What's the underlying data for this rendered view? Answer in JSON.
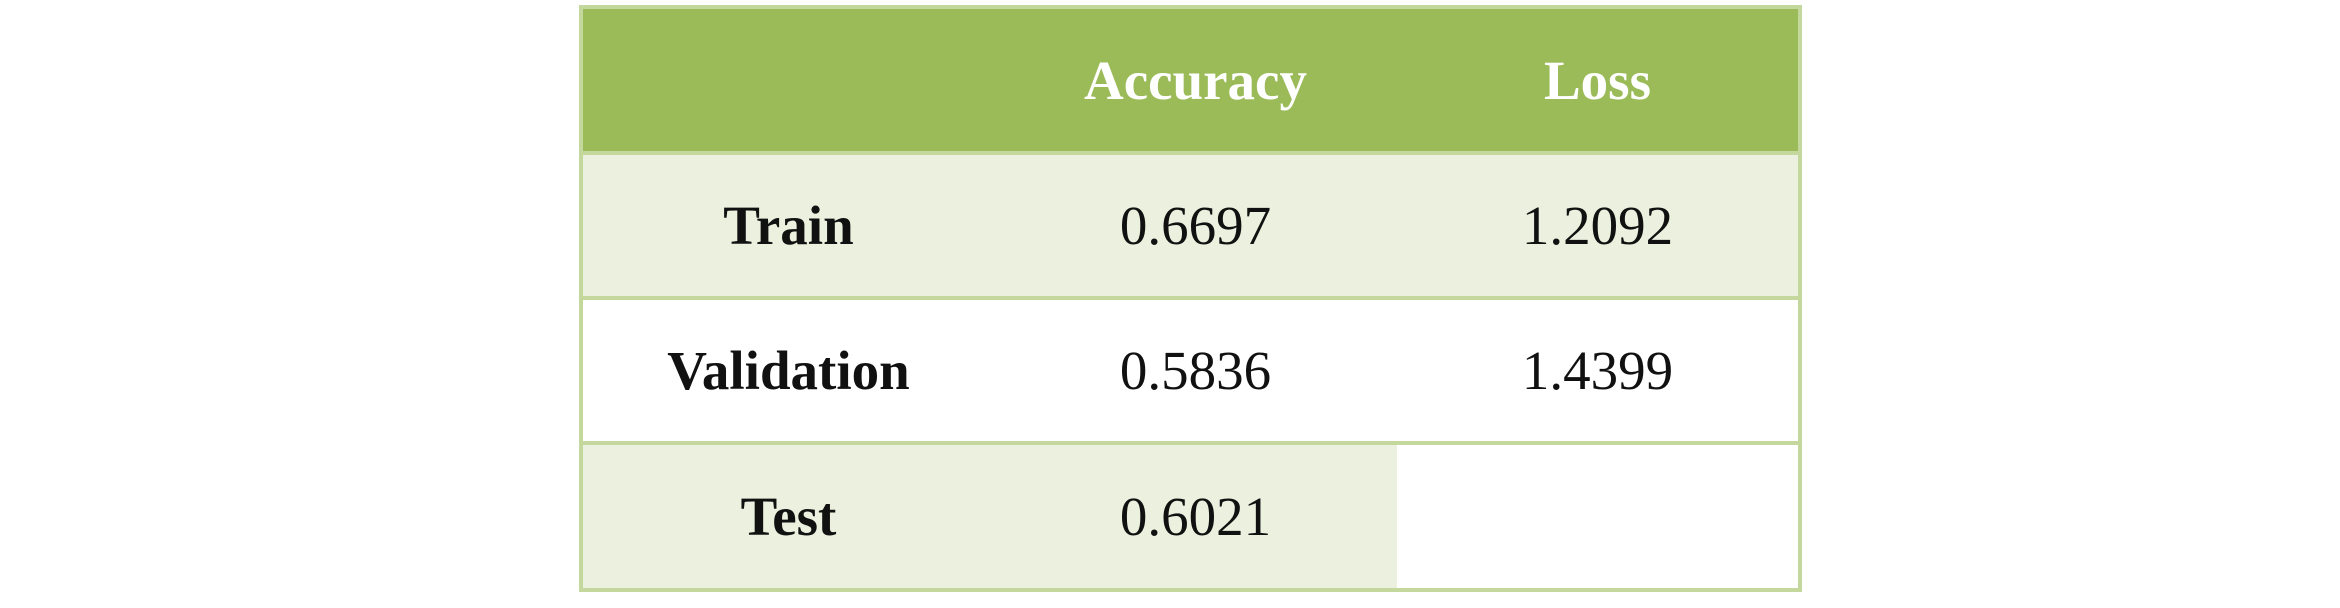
{
  "table": {
    "header": {
      "corner": "",
      "columns": [
        "Accuracy",
        "Loss"
      ]
    },
    "rows": [
      {
        "label": "Train",
        "accuracy": "0.6697",
        "loss": "1.2092"
      },
      {
        "label": "Validation",
        "accuracy": "0.5836",
        "loss": "1.4399"
      },
      {
        "label": "Test",
        "accuracy": "0.6021",
        "loss": ""
      }
    ],
    "colors": {
      "header_bg": "#9bbb59",
      "header_text": "#ffffff",
      "band_shaded": "#ebf1de",
      "band_plain": "#ffffff",
      "grid_line": "#c4d89e"
    }
  }
}
